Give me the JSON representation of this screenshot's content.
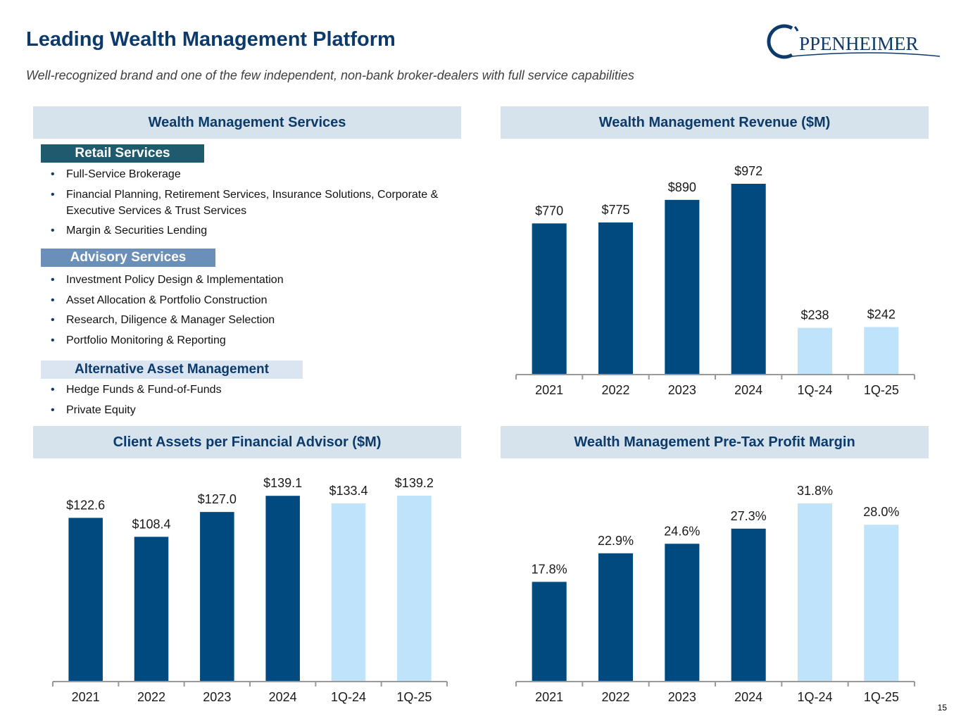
{
  "header": {
    "title": "Leading Wealth Management Platform",
    "subtitle": "Well-recognized brand and one of the few independent, non-bank broker-dealers with full service capabilities",
    "logo": "PPENHEIMER",
    "page_number": "15"
  },
  "services": {
    "title": "Wealth Management Services",
    "sections": [
      {
        "heading": "Retail Services",
        "items": [
          "Full-Service Brokerage",
          "Financial Planning, Retirement Services, Insurance Solutions, Corporate & Executive Services & Trust Services",
          "Margin & Securities Lending"
        ]
      },
      {
        "heading": "Advisory Services",
        "items": [
          "Investment Policy Design & Implementation",
          "Asset Allocation & Portfolio Construction",
          "Research, Diligence & Manager Selection",
          "Portfolio Monitoring & Reporting"
        ]
      },
      {
        "heading": "Alternative Asset Management",
        "items": [
          "Hedge Funds & Fund-of-Funds",
          "Private Equity"
        ]
      }
    ]
  },
  "chart_data": [
    {
      "type": "bar",
      "title": "Wealth Management Revenue ($M)",
      "categories": [
        "2021",
        "2022",
        "2023",
        "2024",
        "1Q-24",
        "1Q-25"
      ],
      "values": [
        770,
        775,
        890,
        972,
        238,
        242
      ],
      "value_labels": [
        "$770",
        "$775",
        "$890",
        "$972",
        "$238",
        "$242"
      ],
      "colors": [
        "#004a7f",
        "#004a7f",
        "#004a7f",
        "#004a7f",
        "#bfe3fb",
        "#bfe3fb"
      ]
    },
    {
      "type": "bar",
      "title": "Client Assets per Financial Advisor ($M)",
      "categories": [
        "2021",
        "2022",
        "2023",
        "2024",
        "1Q-24",
        "1Q-25"
      ],
      "values": [
        122.6,
        108.4,
        127.0,
        139.1,
        133.4,
        139.2
      ],
      "value_labels": [
        "$122.6",
        "$108.4",
        "$127.0",
        "$139.1",
        "$133.4",
        "$139.2"
      ],
      "colors": [
        "#004a7f",
        "#004a7f",
        "#004a7f",
        "#004a7f",
        "#bfe3fb",
        "#bfe3fb"
      ]
    },
    {
      "type": "bar",
      "title": "Wealth Management Pre-Tax Profit Margin",
      "categories": [
        "2021",
        "2022",
        "2023",
        "2024",
        "1Q-24",
        "1Q-25"
      ],
      "values": [
        17.8,
        22.9,
        24.6,
        27.3,
        31.8,
        28.0
      ],
      "value_labels": [
        "17.8%",
        "22.9%",
        "24.6%",
        "27.3%",
        "31.8%",
        "28.0%"
      ],
      "colors": [
        "#004a7f",
        "#004a7f",
        "#004a7f",
        "#004a7f",
        "#bfe3fb",
        "#bfe3fb"
      ]
    }
  ]
}
